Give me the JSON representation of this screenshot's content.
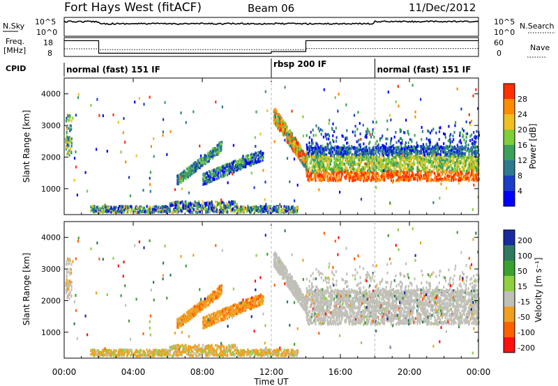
{
  "header": {
    "station": "Fort Hays West (fitACF)",
    "beam": "Beam 06",
    "date": "11/Dec/2012"
  },
  "top_panels": {
    "nsky_label": "N.Sky",
    "nsky_ticks": [
      "10^5",
      "10^0"
    ],
    "nsearch_label": "N.Search",
    "nsearch_ticks": [
      "10^5",
      "10^0"
    ],
    "freq_label_1": "Freq.",
    "freq_label_2": "[MHz]",
    "freq_ticks": [
      "18",
      "8"
    ],
    "nave_label": "Nave",
    "nave_ticks": [
      "60",
      "0"
    ],
    "cpid_label": "CPID",
    "modes": [
      {
        "label": "normal (fast) 151 IF",
        "start_hour": 0,
        "end_hour": 12
      },
      {
        "label": "rbsp 200 IF",
        "start_hour": 12,
        "end_hour": 18
      },
      {
        "label": "normal (fast) 151 IF",
        "start_hour": 18,
        "end_hour": 24
      }
    ]
  },
  "chart_data": [
    {
      "type": "heatmap",
      "name": "power",
      "ylabel": "Slant Range [km]",
      "ylim": [
        180,
        4500
      ],
      "y_ticks": [
        1000,
        2000,
        3000,
        4000
      ],
      "colorbar_label": "Power [dB]",
      "colorbar_ticks": [
        "4",
        "8",
        "12",
        "16",
        "20",
        "24",
        "28"
      ],
      "colorbar_range": [
        0,
        30
      ],
      "colors": [
        "#0000ff",
        "#1a3ec8",
        "#2e7a8f",
        "#3aa05c",
        "#7fcf3a",
        "#f0c020",
        "#ff8c00",
        "#ff3000"
      ]
    },
    {
      "type": "heatmap",
      "name": "velocity",
      "ylabel": "Slant Range [km]",
      "xlabel": "Time UT",
      "ylim": [
        180,
        4500
      ],
      "y_ticks": [
        1000,
        2000,
        3000,
        4000
      ],
      "colorbar_label": "Velocity [m s⁻¹]",
      "colorbar_ticks": [
        "200",
        "100",
        "50",
        "15",
        "-15",
        "-50",
        "-100",
        "-200"
      ],
      "colors": [
        "#1a2aa0",
        "#2e7a5f",
        "#3aa030",
        "#8fd040",
        "#c0c0b8",
        "#f0a020",
        "#ff6000",
        "#ff1010"
      ],
      "x_ticks": [
        "00:00",
        "04:00",
        "08:00",
        "12:00",
        "16:00",
        "20:00",
        "00:00"
      ],
      "xlim_hours": [
        0,
        24
      ]
    }
  ]
}
